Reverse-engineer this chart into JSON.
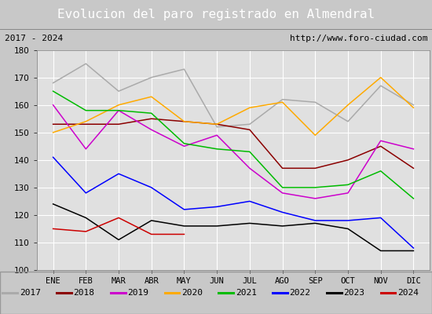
{
  "title": "Evolucion del paro registrado en Almendral",
  "subtitle_left": "2017 - 2024",
  "subtitle_right": "http://www.foro-ciudad.com",
  "months": [
    "ENE",
    "FEB",
    "MAR",
    "ABR",
    "MAY",
    "JUN",
    "JUL",
    "AGO",
    "SEP",
    "OCT",
    "NOV",
    "DIC"
  ],
  "ylim": [
    100,
    180
  ],
  "yticks": [
    100,
    110,
    120,
    130,
    140,
    150,
    160,
    170,
    180
  ],
  "series": {
    "2017": {
      "color": "#aaaaaa",
      "data": [
        168,
        175,
        165,
        170,
        173,
        152,
        153,
        162,
        161,
        154,
        167,
        160
      ]
    },
    "2018": {
      "color": "#8b0000",
      "data": [
        153,
        153,
        153,
        155,
        154,
        153,
        151,
        137,
        137,
        140,
        145,
        137
      ]
    },
    "2019": {
      "color": "#cc00cc",
      "data": [
        160,
        144,
        158,
        151,
        145,
        149,
        137,
        128,
        126,
        128,
        147,
        144
      ]
    },
    "2020": {
      "color": "#ffaa00",
      "data": [
        150,
        154,
        160,
        163,
        154,
        153,
        159,
        161,
        149,
        160,
        170,
        159
      ]
    },
    "2021": {
      "color": "#00bb00",
      "data": [
        165,
        158,
        158,
        157,
        146,
        144,
        143,
        130,
        130,
        131,
        136,
        126
      ]
    },
    "2022": {
      "color": "#0000ff",
      "data": [
        141,
        128,
        135,
        130,
        122,
        123,
        125,
        121,
        118,
        118,
        119,
        108
      ]
    },
    "2023": {
      "color": "#000000",
      "data": [
        124,
        119,
        111,
        118,
        116,
        116,
        117,
        116,
        117,
        115,
        107,
        107
      ]
    },
    "2024": {
      "color": "#cc0000",
      "data": [
        115,
        114,
        119,
        113,
        113,
        null,
        null,
        null,
        null,
        null,
        null,
        null
      ]
    }
  },
  "title_bg_color": "#4c7ebe",
  "title_text_color": "#ffffff",
  "subtitle_bg_color": "#d8d8d8",
  "plot_bg_color": "#e0e0e0",
  "grid_color": "#ffffff",
  "legend_bg_color": "#f0f0f0",
  "outer_bg_color": "#c8c8c8",
  "title_fontsize": 11.5,
  "subtitle_fontsize": 8,
  "axis_fontsize": 7.5,
  "legend_fontsize": 8
}
